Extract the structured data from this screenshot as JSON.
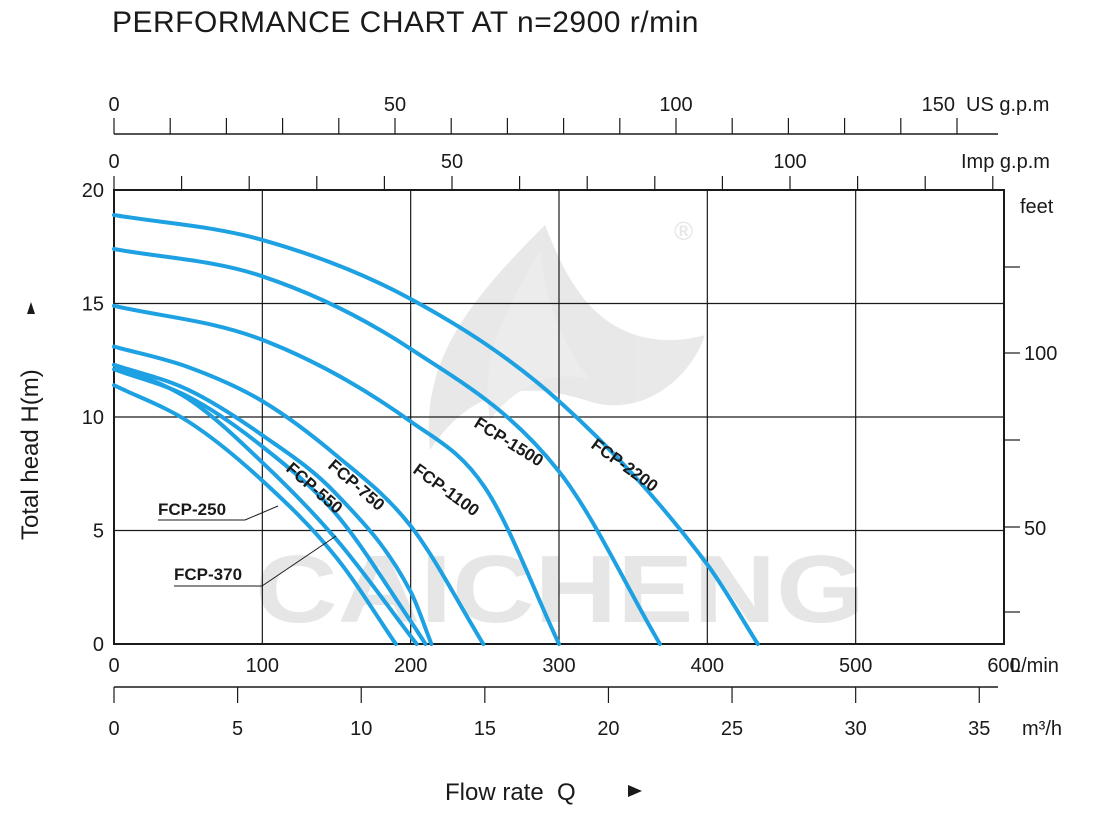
{
  "title": "PERFORMANCE CHART AT n=2900 r/min",
  "chart_data": {
    "type": "line",
    "title": "PERFORMANCE CHART AT n=2900 r/min",
    "xlabel": "Flow rate  Q",
    "ylabel": "Total  head H(m)",
    "xlim": [
      0,
      600
    ],
    "ylim": [
      0,
      20
    ],
    "grid": true,
    "x_unit": "L/min",
    "x_ticks": [
      0,
      100,
      200,
      300,
      400,
      500,
      600
    ],
    "y_ticks": [
      0,
      5,
      10,
      15,
      20
    ],
    "secondary_axes": {
      "us_gpm": {
        "unit": "US g.p.m",
        "ticks": [
          0,
          50,
          100,
          150
        ]
      },
      "imp_gpm": {
        "unit": "Imp g.p.m",
        "ticks": [
          0,
          50,
          100
        ]
      },
      "m3h": {
        "unit": "m³/h",
        "ticks": [
          0,
          5,
          10,
          15,
          20,
          25,
          30,
          35
        ]
      },
      "feet": {
        "unit": "feet",
        "ticks": [
          50,
          100
        ]
      }
    },
    "series": [
      {
        "name": "FCP-250",
        "x": [
          0,
          50,
          100,
          150,
          190
        ],
        "y": [
          11.4,
          9.8,
          7.2,
          3.8,
          0.0
        ]
      },
      {
        "name": "FCP-370",
        "x": [
          0,
          50,
          100,
          150,
          204
        ],
        "y": [
          12.3,
          10.8,
          8.0,
          4.6,
          0.0
        ]
      },
      {
        "name": "FCP-550",
        "x": [
          0,
          50,
          100,
          150,
          200,
          210
        ],
        "y": [
          12.1,
          10.9,
          8.7,
          5.7,
          1.0,
          0.0
        ]
      },
      {
        "name": "FCP-750",
        "x": [
          0,
          50,
          100,
          150,
          200,
          214
        ],
        "y": [
          12.3,
          11.2,
          9.2,
          6.6,
          2.3,
          0.0
        ]
      },
      {
        "name": "FCP-1100",
        "x": [
          0,
          50,
          100,
          150,
          200,
          249
        ],
        "y": [
          13.1,
          12.2,
          10.7,
          8.3,
          5.2,
          0.0
        ]
      },
      {
        "name": "FCP-1500",
        "x": [
          0,
          100,
          200,
          250,
          300
        ],
        "y": [
          14.9,
          13.4,
          9.8,
          6.9,
          0.0
        ]
      },
      {
        "name": "FCP-2200",
        "x": [
          0,
          100,
          200,
          300,
          368
        ],
        "y": [
          17.4,
          16.2,
          13.0,
          7.6,
          0.0
        ]
      },
      {
        "name": "",
        "x": [
          0,
          100,
          200,
          300,
          400,
          434
        ],
        "y": [
          18.9,
          17.8,
          15.2,
          10.7,
          3.5,
          0.0
        ]
      }
    ],
    "line_color": "#1da1e2"
  },
  "watermark": {
    "text": "CAICHENG",
    "registered_mark": "®"
  }
}
